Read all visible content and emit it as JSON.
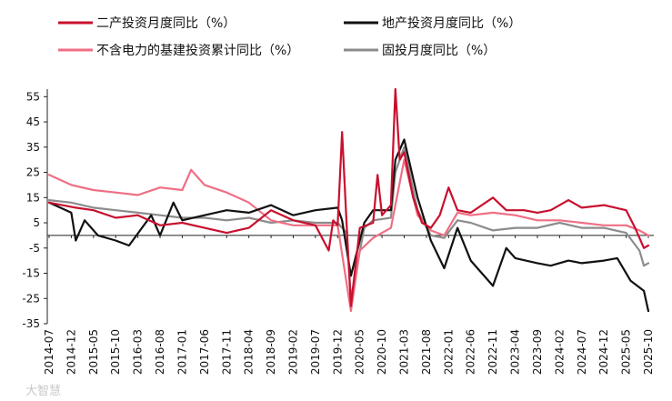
{
  "chart_data": {
    "type": "line",
    "title": "",
    "xlabel": "",
    "ylabel": "",
    "ylim": [
      -35,
      58
    ],
    "y_ticks": [
      55,
      45,
      35,
      25,
      15,
      5,
      -5,
      -15,
      -25,
      -35
    ],
    "x_tick_labels": [
      "2014-07",
      "2014-12",
      "2015-05",
      "2015-10",
      "2016-03",
      "2016-08",
      "2017-01",
      "2017-06",
      "2017-11",
      "2018-04",
      "2018-09",
      "2019-02",
      "2019-07",
      "2019-12",
      "2020-05",
      "2020-10",
      "2021-03",
      "2021-08",
      "2022-01",
      "2022-06",
      "2022-11",
      "2023-04",
      "2023-09",
      "2024-02",
      "2024-07",
      "2024-12",
      "2025-05",
      "2025-10"
    ],
    "grid": false,
    "legend_position": "top",
    "series": [
      {
        "name": "二产投资月度同比（%）",
        "color": "#c8102e",
        "points": [
          [
            "2014-07",
            13
          ],
          [
            "2015-01",
            11
          ],
          [
            "2015-05",
            10
          ],
          [
            "2015-10",
            7
          ],
          [
            "2016-03",
            8
          ],
          [
            "2016-08",
            4
          ],
          [
            "2017-01",
            5
          ],
          [
            "2017-06",
            3
          ],
          [
            "2017-11",
            1
          ],
          [
            "2018-04",
            3
          ],
          [
            "2018-09",
            10
          ],
          [
            "2019-02",
            6
          ],
          [
            "2019-07",
            4
          ],
          [
            "2019-10",
            -6
          ],
          [
            "2019-11",
            6
          ],
          [
            "2019-12",
            4
          ],
          [
            "2020-01",
            41
          ],
          [
            "2020-02",
            5
          ],
          [
            "2020-03",
            -28
          ],
          [
            "2020-05",
            3
          ],
          [
            "2020-08",
            5
          ],
          [
            "2020-09",
            24
          ],
          [
            "2020-10",
            8
          ],
          [
            "2020-12",
            12
          ],
          [
            "2021-01",
            58
          ],
          [
            "2021-02",
            30
          ],
          [
            "2021-03",
            33
          ],
          [
            "2021-05",
            15
          ],
          [
            "2021-07",
            5
          ],
          [
            "2021-09",
            3
          ],
          [
            "2021-11",
            8
          ],
          [
            "2022-01",
            19
          ],
          [
            "2022-03",
            10
          ],
          [
            "2022-06",
            9
          ],
          [
            "2022-11",
            15
          ],
          [
            "2023-02",
            10
          ],
          [
            "2023-06",
            10
          ],
          [
            "2023-09",
            9
          ],
          [
            "2023-12",
            10
          ],
          [
            "2024-04",
            14
          ],
          [
            "2024-07",
            11
          ],
          [
            "2024-12",
            12
          ],
          [
            "2025-05",
            10
          ],
          [
            "2025-07",
            3
          ],
          [
            "2025-09",
            -5
          ],
          [
            "2025-10",
            -4
          ]
        ]
      },
      {
        "name": "地产投资月度同比（%）",
        "color": "#111111",
        "points": [
          [
            "2014-07",
            13
          ],
          [
            "2014-12",
            9
          ],
          [
            "2015-01",
            -2
          ],
          [
            "2015-03",
            6
          ],
          [
            "2015-06",
            0
          ],
          [
            "2015-10",
            -2
          ],
          [
            "2016-01",
            -4
          ],
          [
            "2016-06",
            8
          ],
          [
            "2016-08",
            0
          ],
          [
            "2016-11",
            13
          ],
          [
            "2017-01",
            6
          ],
          [
            "2017-06",
            8
          ],
          [
            "2017-11",
            10
          ],
          [
            "2018-04",
            9
          ],
          [
            "2018-09",
            12
          ],
          [
            "2019-02",
            8
          ],
          [
            "2019-07",
            10
          ],
          [
            "2019-12",
            11
          ],
          [
            "2020-01",
            6
          ],
          [
            "2020-03",
            -16
          ],
          [
            "2020-06",
            5
          ],
          [
            "2020-08",
            10
          ],
          [
            "2020-12",
            10
          ],
          [
            "2021-01",
            30
          ],
          [
            "2021-03",
            38
          ],
          [
            "2021-06",
            15
          ],
          [
            "2021-09",
            -2
          ],
          [
            "2021-12",
            -13
          ],
          [
            "2022-03",
            3
          ],
          [
            "2022-06",
            -10
          ],
          [
            "2022-11",
            -20
          ],
          [
            "2023-02",
            -5
          ],
          [
            "2023-04",
            -9
          ],
          [
            "2023-09",
            -11
          ],
          [
            "2023-12",
            -12
          ],
          [
            "2024-04",
            -10
          ],
          [
            "2024-07",
            -11
          ],
          [
            "2024-12",
            -10
          ],
          [
            "2025-03",
            -9
          ],
          [
            "2025-06",
            -18
          ],
          [
            "2025-09",
            -22
          ],
          [
            "2025-10",
            -30
          ]
        ]
      },
      {
        "name": "不含电力的基建投资累计同比（%）",
        "color": "#ef6f84",
        "points": [
          [
            "2014-07",
            24
          ],
          [
            "2014-12",
            20
          ],
          [
            "2015-05",
            18
          ],
          [
            "2015-10",
            17
          ],
          [
            "2016-03",
            16
          ],
          [
            "2016-08",
            19
          ],
          [
            "2017-01",
            18
          ],
          [
            "2017-03",
            26
          ],
          [
            "2017-06",
            20
          ],
          [
            "2017-11",
            17
          ],
          [
            "2018-04",
            13
          ],
          [
            "2018-09",
            6
          ],
          [
            "2019-02",
            4
          ],
          [
            "2019-07",
            4
          ],
          [
            "2019-12",
            4
          ],
          [
            "2020-03",
            -30
          ],
          [
            "2020-05",
            -6
          ],
          [
            "2020-08",
            -1
          ],
          [
            "2020-10",
            1
          ],
          [
            "2020-12",
            3
          ],
          [
            "2021-03",
            30
          ],
          [
            "2021-06",
            8
          ],
          [
            "2021-09",
            2
          ],
          [
            "2021-12",
            0
          ],
          [
            "2022-03",
            9
          ],
          [
            "2022-06",
            8
          ],
          [
            "2022-11",
            9
          ],
          [
            "2023-04",
            8
          ],
          [
            "2023-09",
            6
          ],
          [
            "2024-02",
            6
          ],
          [
            "2024-07",
            5
          ],
          [
            "2024-12",
            4
          ],
          [
            "2025-05",
            4
          ],
          [
            "2025-08",
            2
          ],
          [
            "2025-10",
            0
          ]
        ]
      },
      {
        "name": "固投月度同比（%）",
        "color": "#8c8c8c",
        "points": [
          [
            "2014-07",
            14
          ],
          [
            "2014-12",
            13
          ],
          [
            "2015-05",
            11
          ],
          [
            "2015-10",
            10
          ],
          [
            "2016-03",
            9
          ],
          [
            "2016-08",
            8
          ],
          [
            "2017-01",
            7
          ],
          [
            "2017-06",
            7
          ],
          [
            "2017-11",
            6
          ],
          [
            "2018-04",
            7
          ],
          [
            "2018-09",
            5
          ],
          [
            "2019-02",
            6
          ],
          [
            "2019-07",
            5
          ],
          [
            "2019-12",
            5
          ],
          [
            "2020-02",
            1
          ],
          [
            "2020-03",
            -25
          ],
          [
            "2020-06",
            3
          ],
          [
            "2020-08",
            6
          ],
          [
            "2020-12",
            7
          ],
          [
            "2021-01",
            25
          ],
          [
            "2021-03",
            35
          ],
          [
            "2021-06",
            10
          ],
          [
            "2021-09",
            0
          ],
          [
            "2021-12",
            -1
          ],
          [
            "2022-03",
            6
          ],
          [
            "2022-06",
            5
          ],
          [
            "2022-11",
            2
          ],
          [
            "2023-04",
            3
          ],
          [
            "2023-09",
            3
          ],
          [
            "2024-02",
            5
          ],
          [
            "2024-07",
            3
          ],
          [
            "2024-12",
            3
          ],
          [
            "2025-05",
            1
          ],
          [
            "2025-08",
            -6
          ],
          [
            "2025-09",
            -12
          ],
          [
            "2025-10",
            -11
          ]
        ]
      }
    ]
  },
  "watermark": "大智慧"
}
